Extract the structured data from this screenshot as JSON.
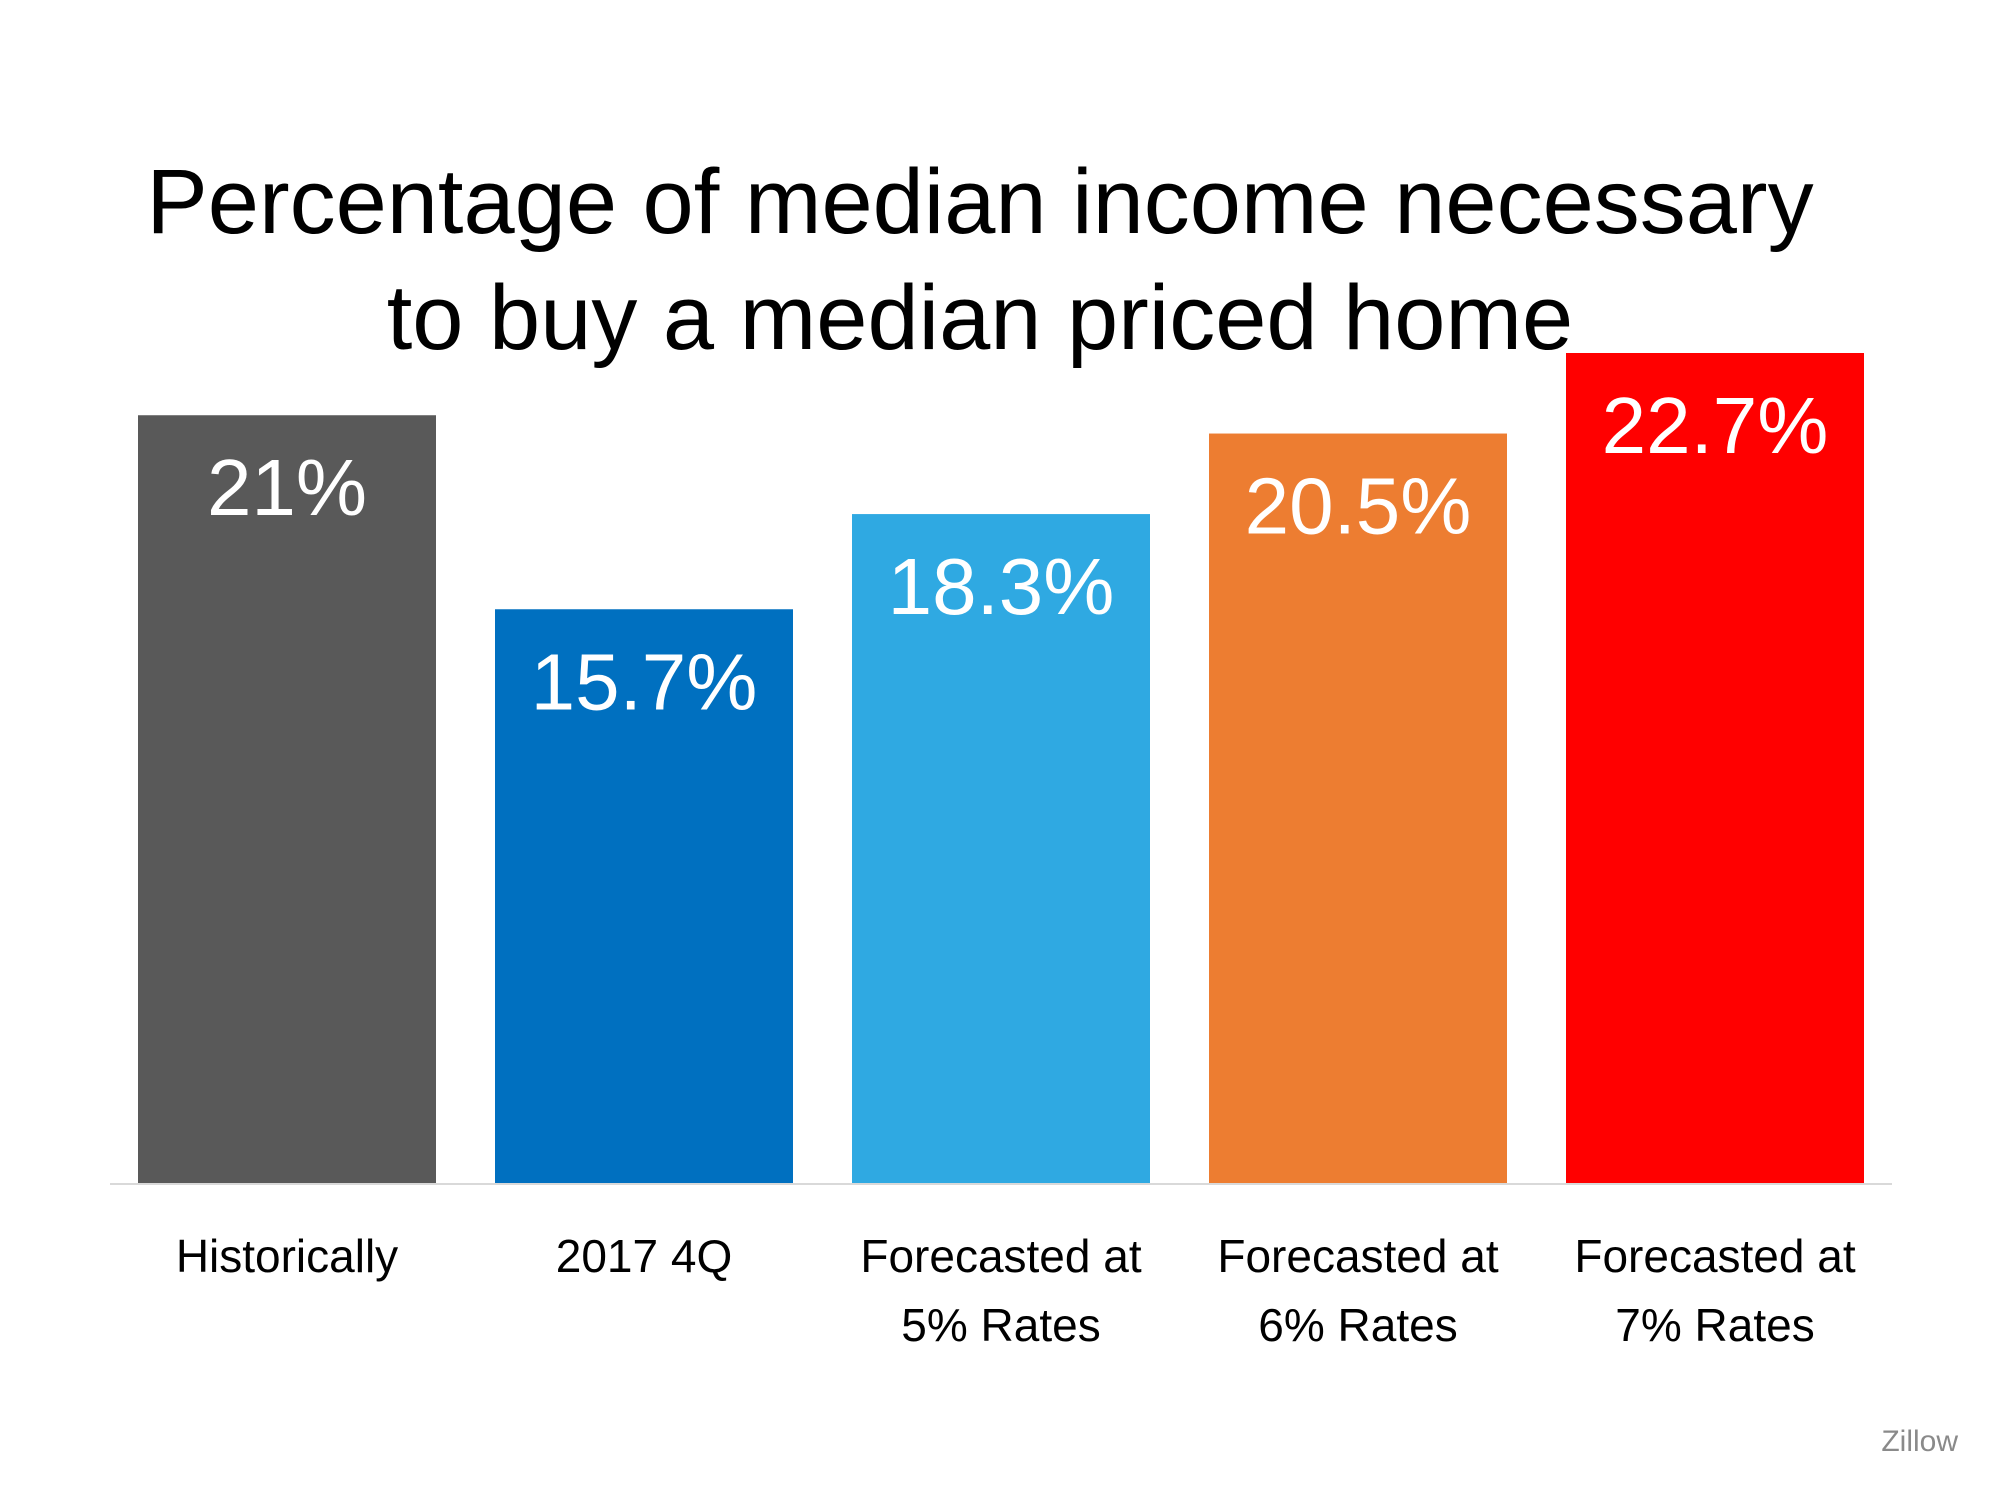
{
  "chart_data": {
    "type": "bar",
    "title_lines": [
      "Percentage of median income necessary",
      "to buy a median priced home"
    ],
    "categories": [
      [
        "Historically"
      ],
      [
        "2017 4Q"
      ],
      [
        "Forecasted at",
        "5% Rates"
      ],
      [
        "Forecasted at",
        "6% Rates"
      ],
      [
        "Forecasted at",
        "7% Rates"
      ]
    ],
    "values": [
      21,
      15.7,
      18.3,
      20.5,
      22.7
    ],
    "value_labels": [
      "21%",
      "15.7%",
      "18.3%",
      "20.5%",
      "22.7%"
    ],
    "colors": [
      "#595959",
      "#0070C0",
      "#2FA9E2",
      "#ED7D31",
      "#FF0000"
    ],
    "ylim": [
      0,
      22.7
    ],
    "grid": false,
    "legend": "none",
    "source": "Zillow"
  }
}
